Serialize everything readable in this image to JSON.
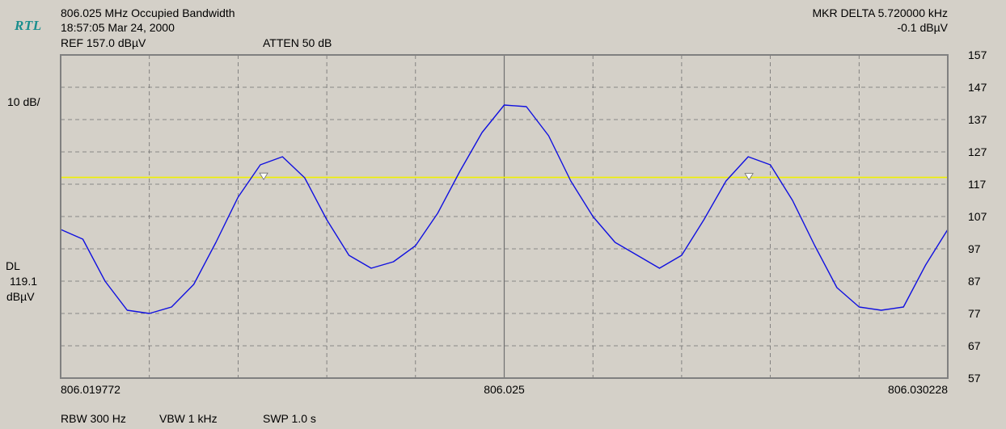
{
  "header": {
    "logo": "RTL",
    "title": "806.025 MHz Occupied Bandwidth",
    "timestamp": "18:57:05 Mar 24, 2000",
    "ref": "REF 157.0 dBµV",
    "atten": "ATTEN 50 dB",
    "marker_delta": "MKR DELTA 5.720000 kHz",
    "marker_value": "-0.1 dBµV"
  },
  "left_panel": {
    "scale": "10 dB/",
    "dl_label": "DL",
    "dl_value": "119.1",
    "dl_unit": "dBµV"
  },
  "footer": {
    "rbw": "RBW 300 Hz",
    "vbw": "VBW 1 kHz",
    "swp": "SWP 1.0 s"
  },
  "colors": {
    "background": "#d4d0c8",
    "plot_background": "#d4d0c8",
    "frame": "#808080",
    "grid": "#707070",
    "trace": "#1010e0",
    "display_line": "#f0f000",
    "marker": "#ffffff",
    "logo": "#1a8e8e"
  },
  "chart_data": {
    "type": "line",
    "title": "806.025 MHz Occupied Bandwidth",
    "xlabel": "",
    "ylabel": "",
    "x_ticks": [
      "806.019772",
      "806.025",
      "806.030228"
    ],
    "x_range_mhz": [
      806.019772,
      806.030228
    ],
    "y_ticks": [
      "157",
      "147",
      "137",
      "127",
      "117",
      "107",
      "97",
      "87",
      "77",
      "67",
      "57"
    ],
    "ylim": [
      57,
      157
    ],
    "grid": true,
    "display_line_dbuv": 119.1,
    "markers": [
      {
        "x": 806.022165,
        "y": 119.2
      },
      {
        "x": 806.027885,
        "y": 119.1
      }
    ],
    "series": [
      {
        "x": [
          806.019772,
          806.020033,
          806.020295,
          806.020556,
          806.020818,
          806.021079,
          806.021341,
          806.021602,
          806.021863,
          806.022125,
          806.022386,
          806.022648,
          806.022909,
          806.02317,
          806.023432,
          806.023694,
          806.023955,
          806.024216,
          806.024478,
          806.024739,
          806.025,
          806.025261,
          806.025523,
          806.025784,
          806.026046,
          806.026307,
          806.026569,
          806.02683,
          806.027091,
          806.027353,
          806.027614,
          806.027876,
          806.028137,
          806.028398,
          806.02866,
          806.028921,
          806.029183,
          806.029444,
          806.029706,
          806.029967,
          806.030228
        ],
        "values": [
          103,
          100,
          87,
          78,
          77,
          79,
          86,
          99,
          113,
          123,
          125.5,
          119,
          106,
          95,
          91,
          93,
          98,
          108,
          121,
          133,
          141.5,
          141,
          132,
          118,
          107,
          99,
          95,
          91,
          95,
          106,
          118,
          125.5,
          123,
          112,
          98,
          85,
          79,
          78,
          79,
          92,
          103
        ]
      }
    ]
  }
}
